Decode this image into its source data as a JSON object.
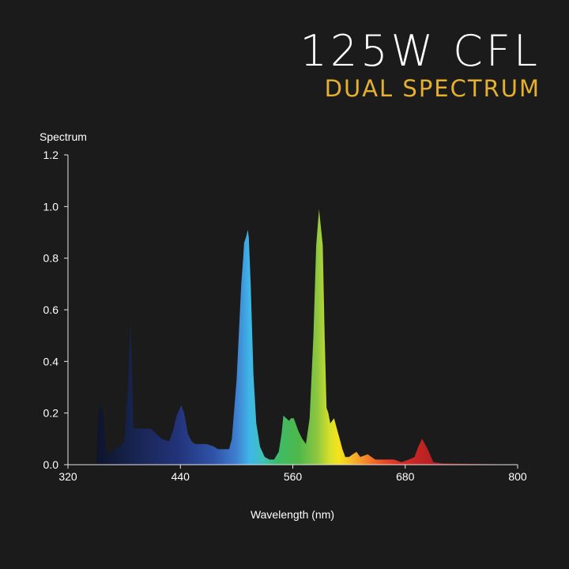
{
  "header": {
    "title": "125W CFL",
    "subtitle": "DUAL SPECTRUM",
    "subtitle_color": "#e5b02f"
  },
  "chart_data": {
    "type": "area",
    "ylabel": "Spectrum",
    "xlabel": "Wavelength (nm)",
    "xlim": [
      320,
      800
    ],
    "ylim": [
      0,
      1.2
    ],
    "x_ticks": [
      320,
      440,
      560,
      680,
      800
    ],
    "y_ticks": [
      "0.0",
      "0.2",
      "0.4",
      "0.6",
      "0.8",
      "1.0",
      "1.2"
    ],
    "grid": false,
    "fill": "visible-spectrum gradient",
    "series": [
      {
        "x": [
          320,
          350,
          351,
          352,
          354,
          356,
          358,
          360,
          362,
          364,
          367,
          370,
          375,
          380,
          384,
          386,
          387,
          388,
          390,
          394,
          398,
          402,
          408,
          414,
          420,
          428,
          432,
          436,
          441,
          444,
          446,
          448,
          452,
          456,
          460,
          468,
          476,
          480,
          486,
          492,
          495,
          500,
          505,
          507,
          508,
          510,
          512,
          513,
          515,
          518,
          521,
          525,
          530,
          535,
          540,
          545,
          548,
          550,
          553,
          556,
          558,
          561,
          563,
          566,
          570,
          574,
          578,
          582,
          585,
          588,
          592,
          594,
          596,
          598,
          600,
          604,
          607,
          610,
          613,
          616,
          620,
          624,
          628,
          632,
          640,
          648,
          652,
          656,
          660,
          668,
          676,
          680,
          684,
          690,
          694,
          698,
          704,
          710,
          720,
          760,
          800
        ],
        "y": [
          0.0,
          0.0,
          0.08,
          0.19,
          0.23,
          0.22,
          0.18,
          0.08,
          0.05,
          0.04,
          0.05,
          0.06,
          0.07,
          0.09,
          0.3,
          0.48,
          0.55,
          0.4,
          0.14,
          0.14,
          0.14,
          0.14,
          0.14,
          0.12,
          0.1,
          0.09,
          0.13,
          0.19,
          0.23,
          0.2,
          0.16,
          0.12,
          0.09,
          0.08,
          0.08,
          0.08,
          0.07,
          0.06,
          0.06,
          0.06,
          0.1,
          0.33,
          0.7,
          0.8,
          0.86,
          0.88,
          0.91,
          0.88,
          0.7,
          0.35,
          0.16,
          0.07,
          0.03,
          0.02,
          0.02,
          0.05,
          0.12,
          0.19,
          0.18,
          0.17,
          0.18,
          0.18,
          0.16,
          0.13,
          0.1,
          0.08,
          0.18,
          0.5,
          0.85,
          0.99,
          0.85,
          0.5,
          0.22,
          0.2,
          0.16,
          0.18,
          0.14,
          0.1,
          0.06,
          0.03,
          0.03,
          0.04,
          0.05,
          0.03,
          0.04,
          0.02,
          0.02,
          0.02,
          0.02,
          0.02,
          0.01,
          0.015,
          0.02,
          0.03,
          0.07,
          0.1,
          0.06,
          0.01,
          0.005,
          0.003,
          0.0
        ]
      }
    ]
  }
}
